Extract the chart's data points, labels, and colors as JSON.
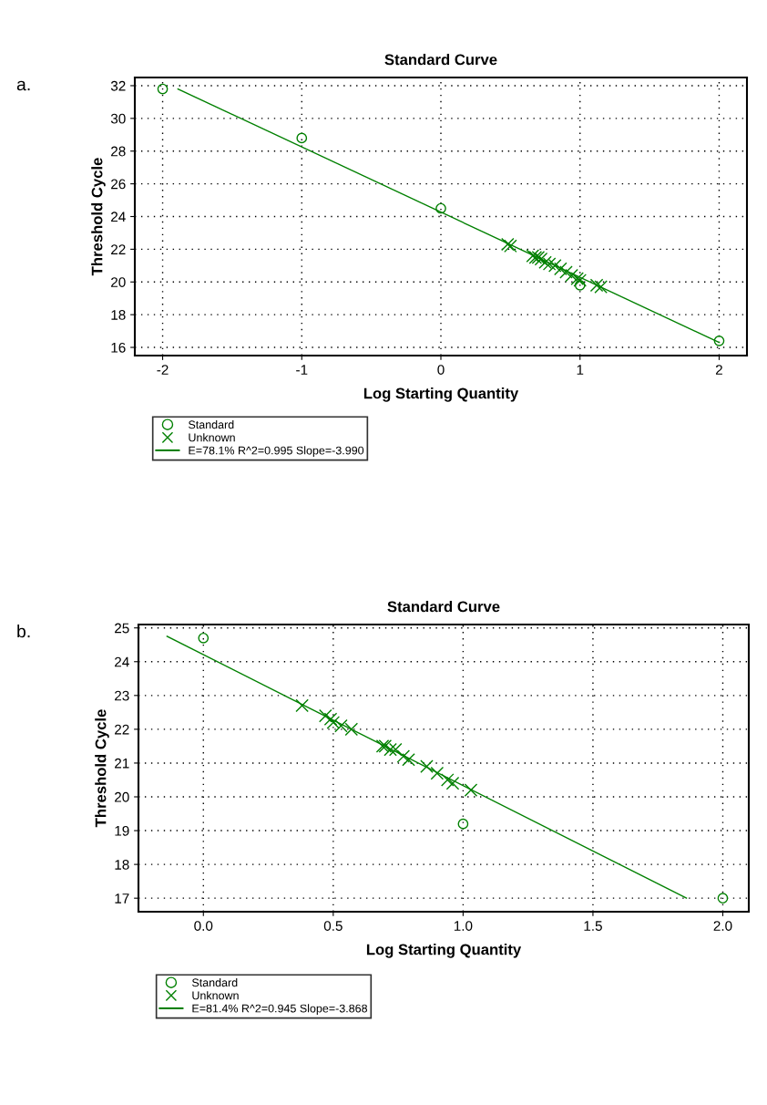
{
  "chart_data": [
    {
      "type": "scatter",
      "title": "Standard Curve",
      "xlabel": "Log Starting Quantity",
      "ylabel": "Threshold Cycle",
      "annotations": [
        "a."
      ],
      "xlim": [
        -2.2,
        2.2
      ],
      "ylim": [
        15.5,
        32.5
      ],
      "xticks": [
        -2,
        -1,
        0,
        1,
        2
      ],
      "yticks": [
        16,
        18,
        20,
        22,
        24,
        26,
        28,
        30,
        32
      ],
      "grid": true,
      "legend": "bottom",
      "series": [
        {
          "name": "Standard",
          "marker": "circle",
          "color": "#008000",
          "x": [
            -2,
            -1,
            0,
            1,
            2
          ],
          "values": [
            31.8,
            28.8,
            24.5,
            19.8,
            16.4
          ]
        },
        {
          "name": "Unknown",
          "marker": "cross",
          "color": "#008000",
          "x": [
            0.48,
            0.5,
            0.66,
            0.68,
            0.7,
            0.72,
            0.75,
            0.78,
            0.82,
            0.86,
            0.9,
            0.94,
            0.98,
            1.0,
            1.12,
            1.15
          ],
          "values": [
            22.3,
            22.2,
            21.6,
            21.5,
            21.5,
            21.4,
            21.2,
            21.1,
            21.0,
            20.8,
            20.6,
            20.4,
            20.2,
            20.1,
            19.8,
            19.7
          ]
        },
        {
          "name": "E=78.1% R^2=0.995 Slope=-3.990",
          "type": "line",
          "marker": "none",
          "color": "#008000",
          "x": [
            -1.89,
            2.0
          ],
          "values": [
            31.8,
            16.3
          ]
        }
      ]
    },
    {
      "type": "scatter",
      "title": "Standard Curve",
      "xlabel": "Log Starting Quantity",
      "ylabel": "Threshold Cycle",
      "annotations": [
        "b."
      ],
      "xlim": [
        -0.25,
        2.1
      ],
      "ylim": [
        16.6,
        25.1
      ],
      "xticks": [
        {
          "value": 0,
          "label": "0.0"
        },
        0.5,
        {
          "value": 1,
          "label": "1.0"
        },
        1.5,
        {
          "value": 2,
          "label": "2.0"
        }
      ],
      "yticks": [
        17,
        18,
        19,
        20,
        21,
        22,
        23,
        24,
        25
      ],
      "grid": true,
      "legend": "bottom",
      "series": [
        {
          "name": "Standard",
          "marker": "circle",
          "color": "#008000",
          "x": [
            0,
            1.0,
            2.0
          ],
          "values": [
            24.7,
            19.2,
            17.0
          ]
        },
        {
          "name": "Unknown",
          "marker": "cross",
          "color": "#008000",
          "x": [
            0.38,
            0.47,
            0.49,
            0.5,
            0.53,
            0.57,
            0.69,
            0.7,
            0.72,
            0.74,
            0.77,
            0.79,
            0.86,
            0.9,
            0.94,
            0.96,
            1.03
          ],
          "values": [
            22.7,
            22.4,
            22.3,
            22.2,
            22.1,
            22.0,
            21.5,
            21.5,
            21.4,
            21.4,
            21.2,
            21.1,
            20.9,
            20.7,
            20.5,
            20.4,
            20.2
          ]
        },
        {
          "name": "E=81.4% R^2=0.945 Slope=-3.868",
          "type": "line",
          "marker": "none",
          "color": "#008000",
          "x": [
            -0.14,
            1.86
          ],
          "values": [
            24.75,
            17.0
          ]
        }
      ]
    }
  ]
}
